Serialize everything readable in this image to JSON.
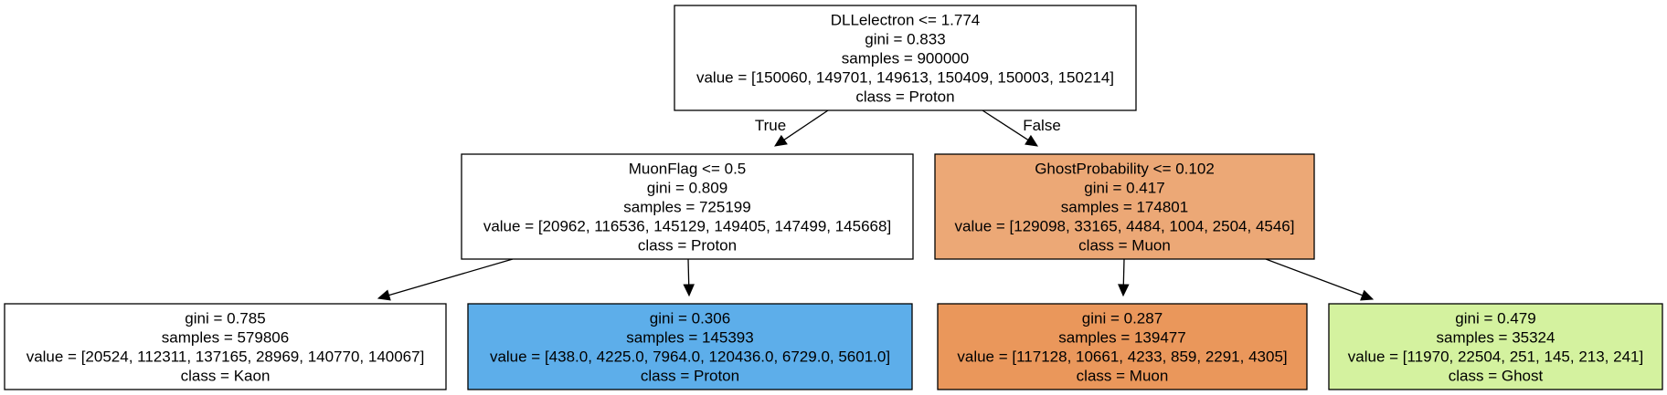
{
  "tree": {
    "nodes": [
      {
        "id": "root",
        "lines": [
          "DLLelectron <= 1.774",
          "gini = 0.833",
          "samples = 900000",
          "value = [150060, 149701, 149613, 150409, 150003, 150214]",
          "class = Proton"
        ],
        "fill": "#ffffff"
      },
      {
        "id": "left",
        "lines": [
          "MuonFlag <= 0.5",
          "gini = 0.809",
          "samples = 725199",
          "value = [20962, 116536, 145129, 149405, 147499, 145668]",
          "class = Proton"
        ],
        "fill": "#ffffff"
      },
      {
        "id": "right",
        "lines": [
          "GhostProbability <= 0.102",
          "gini = 0.417",
          "samples = 174801",
          "value = [129098, 33165, 4484, 1004, 2504, 4546]",
          "class = Muon"
        ],
        "fill": "#eca876"
      },
      {
        "id": "leaf-1",
        "lines": [
          "gini = 0.785",
          "samples = 579806",
          "value = [20524, 112311, 137165, 28969, 140770, 140067]",
          "class = Kaon"
        ],
        "fill": "#ffffff"
      },
      {
        "id": "leaf-2",
        "lines": [
          "gini = 0.306",
          "samples = 145393",
          "value = [438.0, 4225.0, 7964.0, 120436.0, 6729.0, 5601.0]",
          "class = Proton"
        ],
        "fill": "#5daeea"
      },
      {
        "id": "leaf-3",
        "lines": [
          "gini = 0.287",
          "samples = 139477",
          "value = [117128, 10661, 4233, 859, 2291, 4305]",
          "class = Muon"
        ],
        "fill": "#ea975b"
      },
      {
        "id": "leaf-4",
        "lines": [
          "gini = 0.479",
          "samples = 35324",
          "value = [11970, 22504, 251, 145, 213, 241]",
          "class = Ghost"
        ],
        "fill": "#d4f29f"
      }
    ],
    "edges": [
      {
        "from": "root",
        "to": "left",
        "label": "True"
      },
      {
        "from": "root",
        "to": "right",
        "label": "False"
      },
      {
        "from": "left",
        "to": "leaf-1",
        "label": ""
      },
      {
        "from": "left",
        "to": "leaf-2",
        "label": ""
      },
      {
        "from": "right",
        "to": "leaf-3",
        "label": ""
      },
      {
        "from": "right",
        "to": "leaf-4",
        "label": ""
      }
    ]
  }
}
